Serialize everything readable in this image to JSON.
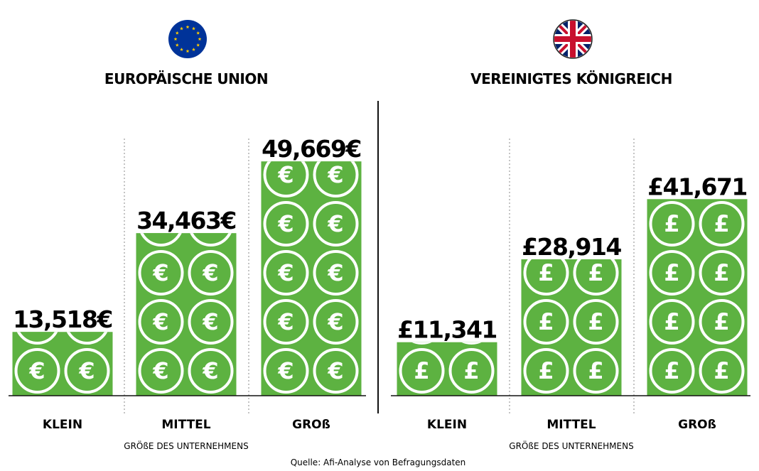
{
  "chart_data": [
    {
      "type": "bar",
      "title": "EUROPÄISCHE UNION",
      "xlabel": "GRÖßE DES UNTERNEHMENS",
      "categories": [
        "KLEIN",
        "MITTEL",
        "GROß"
      ],
      "values": [
        13518,
        34463,
        49669
      ],
      "value_labels": [
        "13,518€",
        "34,463€",
        "49,669€"
      ],
      "coin_symbol": "€",
      "flag_icon": "eu-flag-icon",
      "ylim": [
        0,
        50000
      ]
    },
    {
      "type": "bar",
      "title": "VEREINIGTES KÖNIGREICH",
      "xlabel": "GRÖßE DES UNTERNEHMENS",
      "categories": [
        "KLEIN",
        "MITTEL",
        "GROß"
      ],
      "values": [
        11341,
        28914,
        41671
      ],
      "value_labels": [
        "£11,341",
        "£28,914",
        "£41,671"
      ],
      "coin_symbol": "£",
      "flag_icon": "uk-flag-icon",
      "ylim": [
        0,
        50000
      ]
    }
  ],
  "source": "Quelle: Afi-Analyse von Befragungsdaten",
  "colors": {
    "bar": "#5db241",
    "coin_stroke": "#ffffff",
    "text": "#111111",
    "eu_blue": "#003399",
    "eu_star": "#ffcc00",
    "uk_blue": "#012169",
    "uk_red": "#c8102e"
  }
}
